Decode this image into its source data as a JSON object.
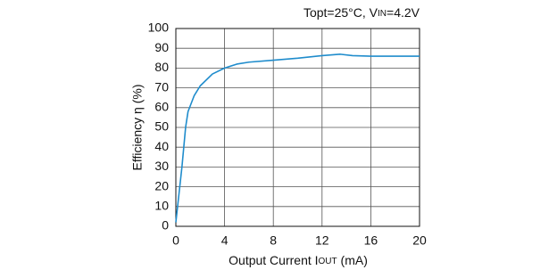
{
  "chart_data": {
    "type": "line",
    "title": [
      "Topt=25°C, V",
      "IN",
      "=4.2V"
    ],
    "x_label": [
      "Output Current I",
      "OUT",
      " (mA)"
    ],
    "y_label": "Efficiency η (%)",
    "series": [
      {
        "name": "Efficiency",
        "color": "#1f8ccc",
        "x": [
          0,
          0.5,
          0.8,
          1,
          1.5,
          2,
          3,
          4,
          5,
          6,
          8,
          10,
          12,
          13.5,
          14.5,
          16,
          18,
          20
        ],
        "values": [
          2,
          30,
          50,
          58,
          66,
          71,
          77,
          80,
          82,
          83,
          84,
          85,
          86.3,
          87,
          86.3,
          86,
          86,
          86
        ]
      }
    ],
    "xlim": [
      0,
      20
    ],
    "xticks": [
      0,
      4,
      8,
      12,
      16,
      20
    ],
    "ylim": [
      0,
      100
    ],
    "yticks": [
      0,
      10,
      20,
      30,
      40,
      50,
      60,
      70,
      80,
      90,
      100
    ],
    "grid": true
  }
}
